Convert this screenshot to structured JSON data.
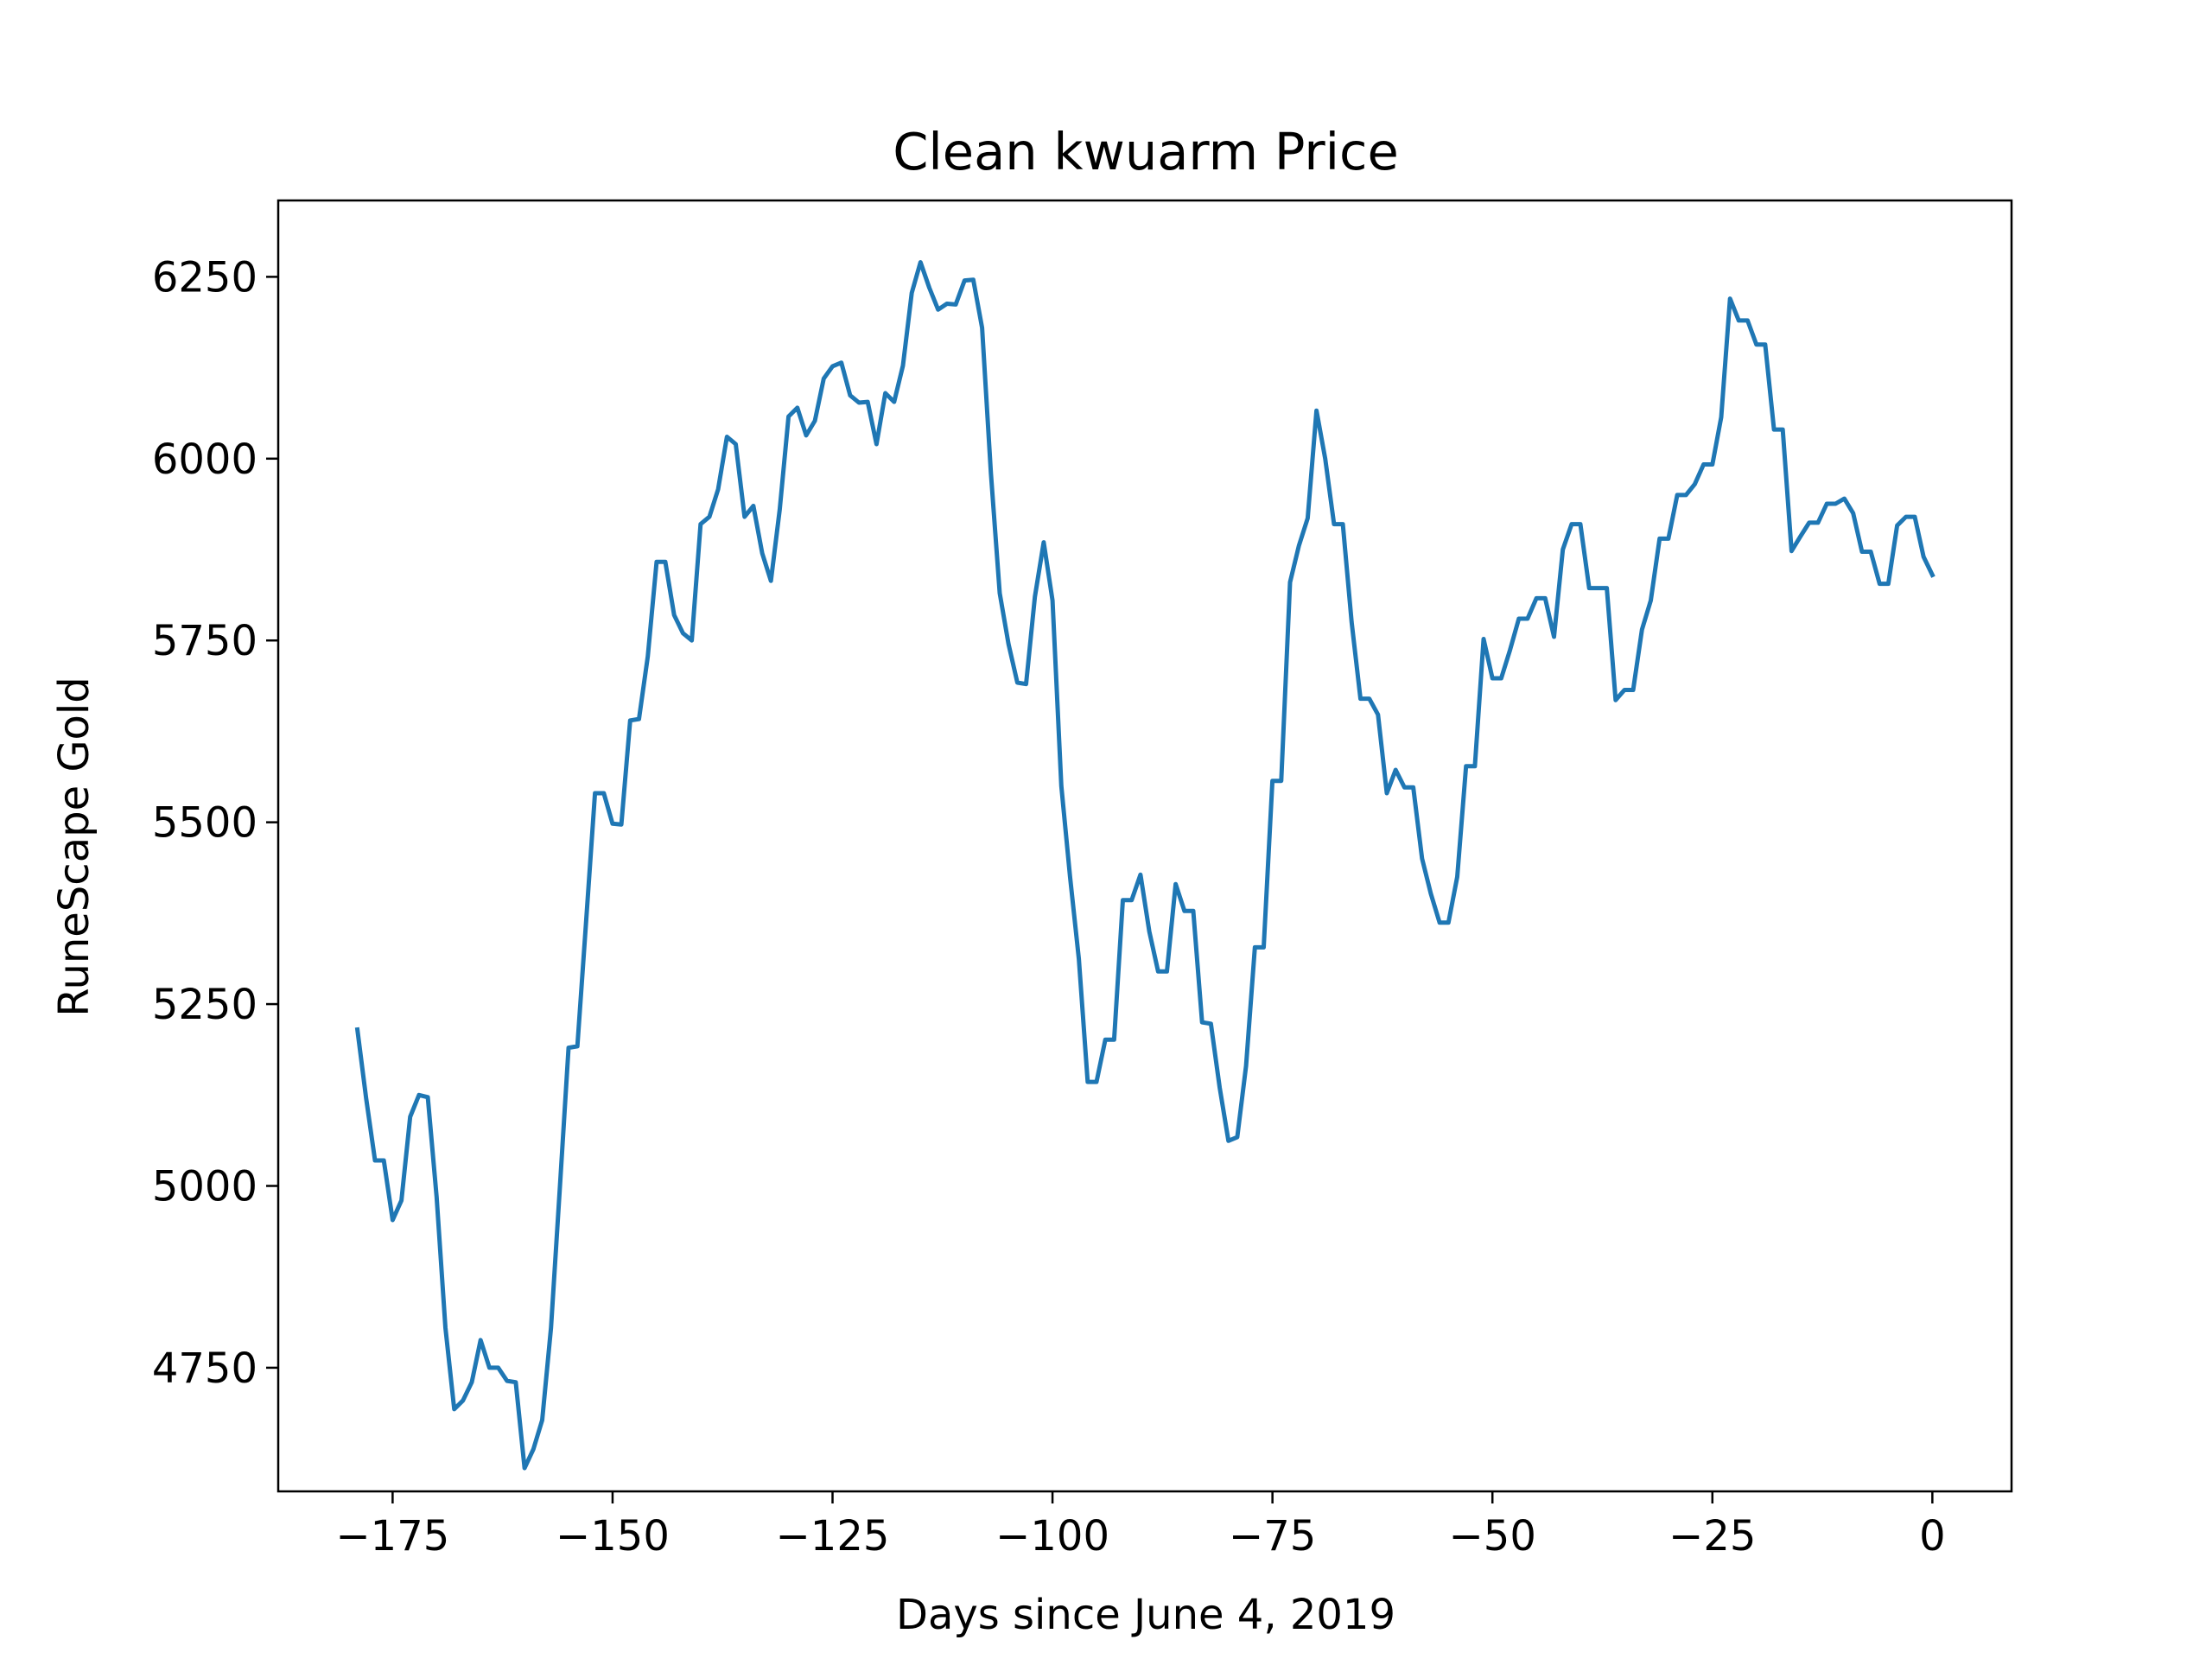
{
  "chart_data": {
    "type": "line",
    "title": "Clean kwuarm Price",
    "xlabel": "Days since June 4, 2019",
    "ylabel": "RuneScape Gold",
    "xlim": [
      -188,
      9
    ],
    "ylim": [
      4580,
      6355
    ],
    "x_ticks": [
      -175,
      -150,
      -125,
      -100,
      -75,
      -50,
      -25,
      0
    ],
    "x_tick_labels": [
      "−175",
      "−150",
      "−125",
      "−100",
      "−75",
      "−50",
      "−25",
      "0"
    ],
    "y_ticks": [
      4750,
      5000,
      5250,
      5500,
      5750,
      6000,
      6250
    ],
    "y_tick_labels": [
      "4750",
      "5000",
      "5250",
      "5500",
      "5750",
      "6000",
      "6250"
    ],
    "grid": false,
    "color": "#1f77b4",
    "series": [
      {
        "x": [
          -179,
          -178,
          -177,
          -176,
          -175,
          -174,
          -173,
          -172,
          -171,
          -170,
          -169,
          -168,
          -167,
          -166,
          -165,
          -164,
          -163,
          -162,
          -161,
          -160,
          -159,
          -158,
          -157,
          -156,
          -155,
          -154,
          -153,
          -152,
          -151,
          -150,
          -149,
          -148,
          -147,
          -146,
          -145,
          -144,
          -143,
          -142,
          -141,
          -140,
          -139,
          -138,
          -137,
          -136,
          -135,
          -134,
          -133,
          -132,
          -131,
          -130,
          -129,
          -128,
          -127,
          -126,
          -125,
          -124,
          -123,
          -122,
          -121,
          -120,
          -119,
          -118,
          -117,
          -116,
          -115,
          -114,
          -113,
          -112,
          -111,
          -110,
          -109,
          -108,
          -107,
          -106,
          -105,
          -104,
          -103,
          -102,
          -101,
          -100,
          -99,
          -98,
          -97,
          -96,
          -95,
          -94,
          -93,
          -92,
          -91,
          -90,
          -89,
          -88,
          -87,
          -86,
          -85,
          -84,
          -83,
          -82,
          -81,
          -80,
          -79,
          -78,
          -77,
          -76,
          -75,
          -74,
          -73,
          -72,
          -71,
          -70,
          -69,
          -68,
          -67,
          -66,
          -65,
          -64,
          -63,
          -62,
          -61,
          -60,
          -59,
          -58,
          -57,
          -56,
          -55,
          -54,
          -53,
          -52,
          -51,
          -50,
          -49,
          -48,
          -47,
          -46,
          -45,
          -44,
          -43,
          -42,
          -41,
          -40,
          -39,
          -38,
          -37,
          -36,
          -35,
          -34,
          -33,
          -32,
          -31,
          -30,
          -29,
          -28,
          -27,
          -26,
          -25,
          -24,
          -23,
          -22,
          -21,
          -20,
          -19,
          -18,
          -17,
          -16,
          -15,
          -14,
          -13,
          -12,
          -11,
          -10,
          -9,
          -8,
          -7,
          -6,
          -5,
          -4,
          -3,
          -2,
          -1,
          0
        ],
        "values": [
          5215,
          5120,
          5035,
          5035,
          4953,
          4980,
          5095,
          5125,
          5122,
          4985,
          4805,
          4693,
          4705,
          4730,
          4788,
          4750,
          4750,
          4732,
          4730,
          4612,
          4638,
          4678,
          4805,
          4995,
          5190,
          5192,
          5365,
          5540,
          5540,
          5498,
          5497,
          5640,
          5642,
          5728,
          5858,
          5858,
          5785,
          5760,
          5750,
          5910,
          5920,
          5958,
          6030,
          6020,
          5920,
          5935,
          5870,
          5832,
          5930,
          6058,
          6070,
          6032,
          6052,
          6110,
          6127,
          6132,
          6087,
          6077,
          6078,
          6020,
          6090,
          6078,
          6128,
          6228,
          6270,
          6235,
          6205,
          6213,
          6212,
          6245,
          6246,
          6180,
          5980,
          5815,
          5745,
          5692,
          5690,
          5810,
          5885,
          5805,
          5550,
          5425,
          5312,
          5143,
          5143,
          5201,
          5201,
          5393,
          5393,
          5428,
          5350,
          5295,
          5295,
          5415,
          5378,
          5378,
          5225,
          5223,
          5135,
          5062,
          5067,
          5165,
          5328,
          5328,
          5557,
          5557,
          5830,
          5880,
          5918,
          6066,
          6000,
          5910,
          5910,
          5775,
          5670,
          5670,
          5648,
          5540,
          5572,
          5548,
          5548,
          5450,
          5402,
          5362,
          5362,
          5425,
          5577,
          5577,
          5752,
          5698,
          5698,
          5737,
          5780,
          5780,
          5808,
          5808,
          5755,
          5875,
          5910,
          5910,
          5822,
          5822,
          5822,
          5668,
          5682,
          5682,
          5765,
          5805,
          5890,
          5890,
          5950,
          5950,
          5965,
          5992,
          5992,
          6057,
          6220,
          6190,
          6190,
          6157,
          6157,
          6040,
          6040,
          5873,
          5893,
          5912,
          5912,
          5938,
          5938,
          5945,
          5925,
          5872,
          5872,
          5828,
          5828,
          5908,
          5920,
          5920,
          5865,
          5840
        ]
      }
    ]
  }
}
